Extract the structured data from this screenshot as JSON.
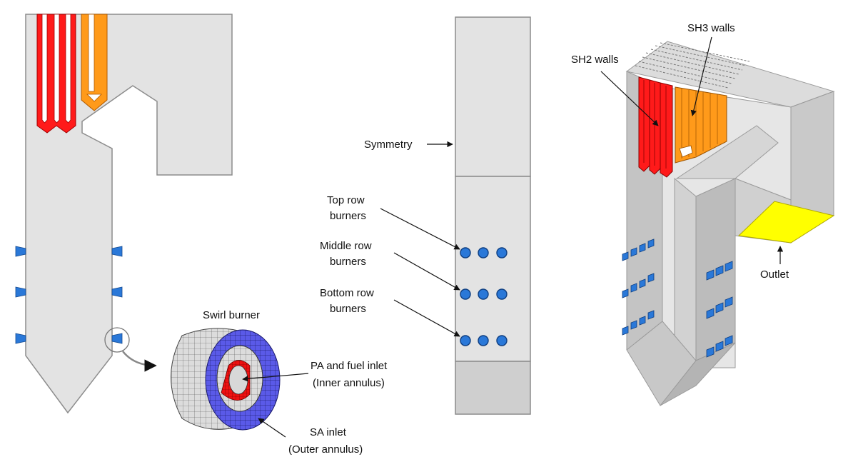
{
  "left_view": {
    "swirl_burner_label": "Swirl burner",
    "pa_label_line1": "PA and fuel inlet",
    "pa_label_line2": "(Inner annulus)",
    "sa_label_line1": "SA inlet",
    "sa_label_line2": "(Outer annulus)"
  },
  "middle_view": {
    "symmetry_label": "Symmetry",
    "top_row_line1": "Top row",
    "top_row_line2": "burners",
    "middle_row_line1": "Middle row",
    "middle_row_line2": "burners",
    "bottom_row_line1": "Bottom row",
    "bottom_row_line2": "burners"
  },
  "right_view": {
    "sh2_label": "SH2 walls",
    "sh3_label": "SH3 walls",
    "outlet_label": "Outlet"
  },
  "colors": {
    "body_gray": "#e3e3e3",
    "outline_gray": "#8c8c8c",
    "sh2_red": "#ff1a1a",
    "sh3_orange": "#ff9a1a",
    "burner_blue": "#2a78d8",
    "sa_purple": "#5555ee",
    "outlet_yellow": "#ffff00"
  }
}
